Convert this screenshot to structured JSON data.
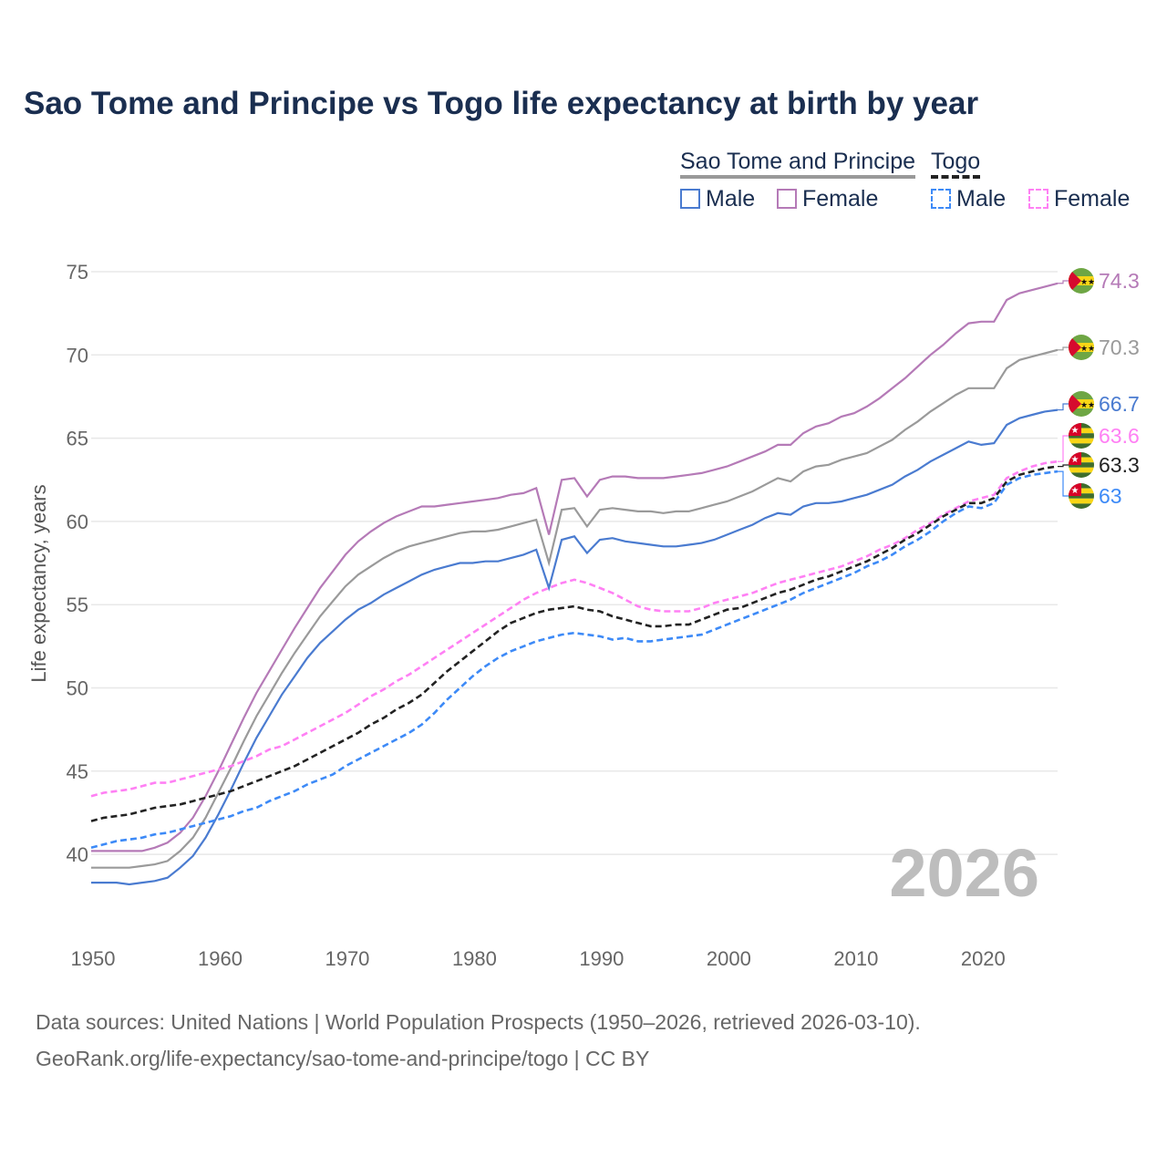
{
  "chart_data": {
    "type": "line",
    "title": "Sao Tome and Principe vs Togo life expectancy at birth by year",
    "xlabel": "",
    "ylabel": "Life expectancy, years",
    "xlim": [
      1950,
      2026
    ],
    "ylim": [
      36,
      77
    ],
    "x_ticks": [
      "1950",
      "1960",
      "1970",
      "1980",
      "1990",
      "2000",
      "2010",
      "2020"
    ],
    "y_ticks": [
      "40",
      "45",
      "50",
      "55",
      "60",
      "65",
      "70",
      "75"
    ],
    "grid": true,
    "watermark_year": "2026",
    "legend": {
      "groups": [
        {
          "name": "Sao Tome and Principe",
          "items": [
            "Male",
            "Female"
          ]
        },
        {
          "name": "Togo",
          "items": [
            "Male",
            "Female"
          ]
        }
      ],
      "placement": "top-right"
    },
    "series": [
      {
        "name": "Sao Tome and Principe Female",
        "country": "stp",
        "color": "#b57ab7",
        "dash": false,
        "end_label": "74.3",
        "values": [
          40.2,
          40.2,
          40.2,
          40.2,
          40.2,
          40.4,
          40.7,
          41.3,
          42.2,
          43.5,
          45.0,
          46.6,
          48.2,
          49.7,
          51.0,
          52.3,
          53.6,
          54.8,
          56.0,
          57.0,
          58.0,
          58.8,
          59.4,
          59.9,
          60.3,
          60.6,
          60.9,
          60.9,
          61.0,
          61.1,
          61.2,
          61.3,
          61.4,
          61.6,
          61.7,
          62.0,
          59.2,
          62.5,
          62.6,
          61.5,
          62.5,
          62.7,
          62.7,
          62.6,
          62.6,
          62.6,
          62.7,
          62.8,
          62.9,
          63.1,
          63.3,
          63.6,
          63.9,
          64.2,
          64.6,
          64.6,
          65.3,
          65.7,
          65.9,
          66.3,
          66.5,
          66.9,
          67.4,
          68.0,
          68.6,
          69.3,
          70.0,
          70.6,
          71.3,
          71.9,
          72.0,
          72.0,
          73.3,
          73.7,
          73.9,
          74.1,
          74.3
        ]
      },
      {
        "name": "Sao Tome and Principe",
        "country": "stp",
        "color": "#9a9a9a",
        "dash": false,
        "end_label": "70.3",
        "values": [
          39.2,
          39.2,
          39.2,
          39.2,
          39.3,
          39.4,
          39.6,
          40.2,
          41.0,
          42.2,
          43.7,
          45.2,
          46.8,
          48.3,
          49.6,
          50.9,
          52.1,
          53.2,
          54.3,
          55.2,
          56.1,
          56.8,
          57.3,
          57.8,
          58.2,
          58.5,
          58.7,
          58.9,
          59.1,
          59.3,
          59.4,
          59.4,
          59.5,
          59.7,
          59.9,
          60.1,
          57.5,
          60.7,
          60.8,
          59.7,
          60.7,
          60.8,
          60.7,
          60.6,
          60.6,
          60.5,
          60.6,
          60.6,
          60.8,
          61.0,
          61.2,
          61.5,
          61.8,
          62.2,
          62.6,
          62.4,
          63.0,
          63.3,
          63.4,
          63.7,
          63.9,
          64.1,
          64.5,
          64.9,
          65.5,
          66.0,
          66.6,
          67.1,
          67.6,
          68.0,
          68.0,
          68.0,
          69.2,
          69.7,
          69.9,
          70.1,
          70.3
        ]
      },
      {
        "name": "Sao Tome and Principe Male",
        "country": "stp",
        "color": "#4a7bd0",
        "dash": false,
        "end_label": "66.7",
        "values": [
          38.3,
          38.3,
          38.3,
          38.2,
          38.3,
          38.4,
          38.6,
          39.2,
          39.9,
          41.0,
          42.4,
          43.9,
          45.5,
          47.0,
          48.3,
          49.6,
          50.7,
          51.8,
          52.7,
          53.4,
          54.1,
          54.7,
          55.1,
          55.6,
          56.0,
          56.4,
          56.8,
          57.1,
          57.3,
          57.5,
          57.5,
          57.6,
          57.6,
          57.8,
          58.0,
          58.3,
          56.0,
          58.9,
          59.1,
          58.1,
          58.9,
          59.0,
          58.8,
          58.7,
          58.6,
          58.5,
          58.5,
          58.6,
          58.7,
          58.9,
          59.2,
          59.5,
          59.8,
          60.2,
          60.5,
          60.4,
          60.9,
          61.1,
          61.1,
          61.2,
          61.4,
          61.6,
          61.9,
          62.2,
          62.7,
          63.1,
          63.6,
          64.0,
          64.4,
          64.8,
          64.6,
          64.7,
          65.8,
          66.2,
          66.4,
          66.6,
          66.7
        ]
      },
      {
        "name": "Togo Female",
        "country": "tgo",
        "color": "#ff80f4",
        "dash": true,
        "end_label": "63.6",
        "values": [
          43.5,
          43.7,
          43.8,
          43.9,
          44.1,
          44.3,
          44.3,
          44.5,
          44.7,
          44.9,
          45.1,
          45.3,
          45.6,
          45.9,
          46.3,
          46.5,
          46.9,
          47.3,
          47.7,
          48.1,
          48.5,
          49.0,
          49.5,
          49.9,
          50.4,
          50.8,
          51.3,
          51.8,
          52.3,
          52.8,
          53.3,
          53.8,
          54.3,
          54.8,
          55.3,
          55.7,
          56.0,
          56.3,
          56.5,
          56.3,
          56.0,
          55.7,
          55.3,
          54.9,
          54.7,
          54.6,
          54.6,
          54.6,
          54.8,
          55.1,
          55.3,
          55.5,
          55.7,
          56.0,
          56.3,
          56.5,
          56.7,
          56.9,
          57.1,
          57.3,
          57.6,
          57.9,
          58.3,
          58.6,
          59.0,
          59.5,
          59.9,
          60.4,
          60.8,
          61.2,
          61.4,
          61.6,
          62.6,
          63.0,
          63.3,
          63.5,
          63.6
        ]
      },
      {
        "name": "Togo",
        "country": "tgo",
        "color": "#222222",
        "dash": true,
        "end_label": "63.3",
        "values": [
          42.0,
          42.2,
          42.3,
          42.4,
          42.6,
          42.8,
          42.9,
          43.0,
          43.2,
          43.4,
          43.6,
          43.8,
          44.1,
          44.4,
          44.7,
          45.0,
          45.3,
          45.7,
          46.1,
          46.5,
          46.9,
          47.3,
          47.8,
          48.2,
          48.7,
          49.1,
          49.6,
          50.3,
          51.0,
          51.6,
          52.2,
          52.8,
          53.4,
          53.9,
          54.2,
          54.5,
          54.7,
          54.8,
          54.9,
          54.7,
          54.6,
          54.3,
          54.1,
          53.9,
          53.7,
          53.7,
          53.8,
          53.8,
          54.1,
          54.4,
          54.7,
          54.8,
          55.1,
          55.4,
          55.7,
          55.9,
          56.2,
          56.5,
          56.7,
          57.0,
          57.3,
          57.6,
          58.0,
          58.4,
          58.9,
          59.3,
          59.8,
          60.3,
          60.7,
          61.1,
          61.1,
          61.4,
          62.4,
          62.8,
          63.0,
          63.2,
          63.3
        ]
      },
      {
        "name": "Togo Male",
        "country": "tgo",
        "color": "#3d8af7",
        "dash": true,
        "end_label": "63",
        "values": [
          40.4,
          40.6,
          40.8,
          40.9,
          41.0,
          41.2,
          41.3,
          41.5,
          41.7,
          41.9,
          42.1,
          42.3,
          42.6,
          42.8,
          43.2,
          43.5,
          43.8,
          44.2,
          44.5,
          44.8,
          45.3,
          45.7,
          46.1,
          46.5,
          46.9,
          47.3,
          47.8,
          48.5,
          49.3,
          50.0,
          50.7,
          51.3,
          51.8,
          52.2,
          52.5,
          52.8,
          53.0,
          53.2,
          53.3,
          53.2,
          53.1,
          52.9,
          53.0,
          52.8,
          52.8,
          52.9,
          53.0,
          53.1,
          53.2,
          53.5,
          53.8,
          54.1,
          54.4,
          54.7,
          55.0,
          55.3,
          55.7,
          56.0,
          56.3,
          56.6,
          56.9,
          57.3,
          57.6,
          58.0,
          58.5,
          58.9,
          59.4,
          60.0,
          60.5,
          60.9,
          60.8,
          61.1,
          62.2,
          62.6,
          62.8,
          62.9,
          63.0
        ]
      }
    ]
  },
  "footer": {
    "line1": "Data sources: United Nations | World Population Prospects (1950–2026, retrieved 2026-03-10).",
    "line2": "GeoRank.org/life-expectancy/sao-tome-and-principe/togo | CC BY"
  }
}
